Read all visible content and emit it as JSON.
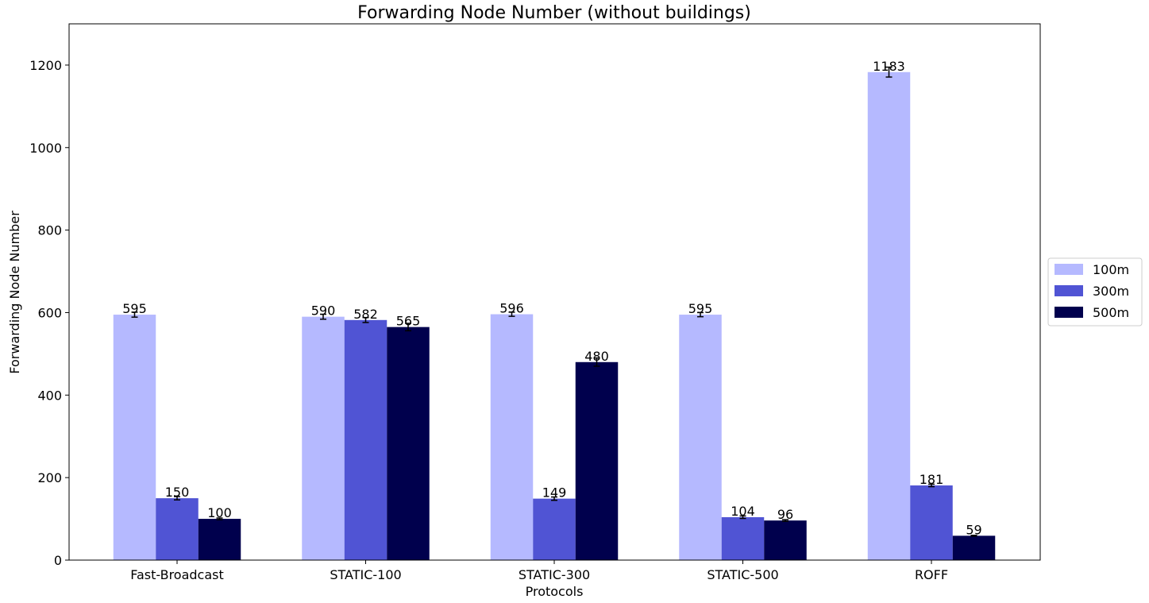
{
  "chart_data": {
    "type": "bar",
    "title": "Forwarding Node Number (without buildings)",
    "xlabel": "Protocols",
    "ylabel": "Forwarding Node Number",
    "categories": [
      "Fast-Broadcast",
      "STATIC-100",
      "STATIC-300",
      "STATIC-500",
      "ROFF"
    ],
    "series": [
      {
        "name": "100m",
        "color": "#b5b9ff",
        "values": [
          595,
          590,
          596,
          595,
          1183
        ],
        "errors": [
          6,
          6,
          5,
          5,
          12
        ]
      },
      {
        "name": "300m",
        "color": "#5054d4",
        "values": [
          150,
          582,
          149,
          104,
          181
        ],
        "errors": [
          4,
          6,
          4,
          3,
          3
        ]
      },
      {
        "name": "500m",
        "color": "#00004d",
        "values": [
          100,
          565,
          480,
          96,
          59
        ],
        "errors": [
          2,
          9,
          10,
          2,
          1
        ]
      }
    ],
    "yticks": [
      0,
      200,
      400,
      600,
      800,
      1000,
      1200
    ],
    "ylim": [
      0,
      1300
    ],
    "legend": "outside-right",
    "grid": false
  }
}
